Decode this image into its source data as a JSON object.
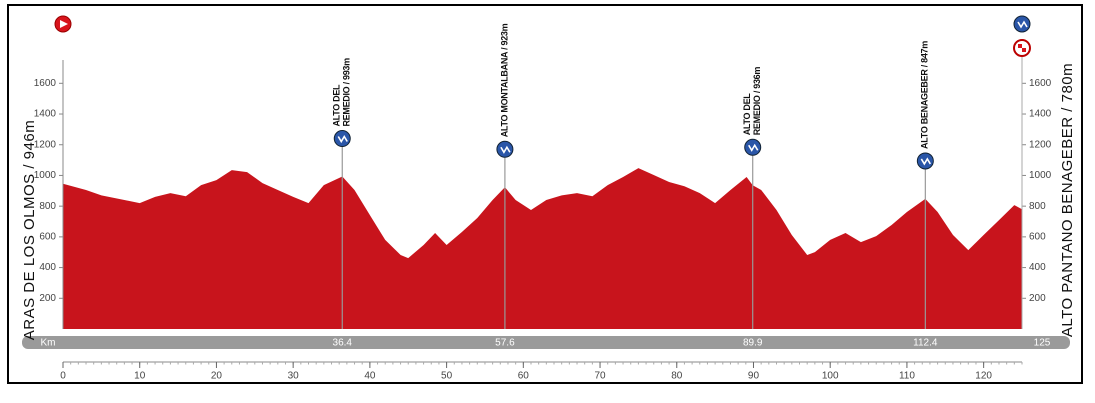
{
  "chart_data": {
    "type": "area",
    "color": "#c8141c",
    "start_label": "ARAS DE LOS OLMOS / 946m",
    "finish_label": "ALTO PANTANO BENAGEBER / 780m",
    "km_label": "Km",
    "x": [
      0,
      3,
      5,
      8,
      10,
      12,
      14,
      16,
      18,
      20,
      22,
      24,
      26,
      28,
      30,
      32,
      34,
      36.4,
      38,
      40,
      42,
      44,
      45,
      47,
      48.5,
      50,
      52,
      54,
      56,
      57.6,
      59,
      61,
      63,
      65,
      67,
      69,
      71,
      73,
      75,
      77,
      79,
      81,
      83,
      85,
      87,
      89.1,
      89.9,
      91,
      93,
      95,
      97,
      98,
      100,
      102,
      104,
      106,
      108,
      110,
      112.4,
      114,
      116,
      118,
      120,
      122,
      124,
      125
    ],
    "values": [
      946,
      905,
      870,
      840,
      820,
      860,
      885,
      865,
      937,
      970,
      1035,
      1022,
      950,
      905,
      860,
      820,
      937,
      993,
      905,
      742,
      580,
      482,
      462,
      547,
      625,
      547,
      632,
      723,
      840,
      923,
      840,
      775,
      840,
      870,
      885,
      865,
      937,
      990,
      1048,
      1003,
      957,
      930,
      885,
      820,
      905,
      990,
      936,
      905,
      775,
      612,
      482,
      501,
      580,
      625,
      566,
      605,
      677,
      762,
      847,
      762,
      612,
      514,
      612,
      709,
      807,
      780
    ],
    "xlim": [
      0,
      125
    ],
    "xticks": [
      0,
      10,
      20,
      30,
      40,
      50,
      60,
      70,
      80,
      90,
      100,
      110,
      120
    ],
    "ylim": [
      0,
      1800
    ],
    "yticks": [
      200,
      400,
      600,
      800,
      1000,
      1200,
      1400,
      1600
    ],
    "climbs": [
      {
        "km": 36.4,
        "elevation": 993,
        "name": [
          "ALTO DEL",
          "REMEDIO / 993m"
        ]
      },
      {
        "km": 57.6,
        "elevation": 923,
        "name": [
          "ALTO MONTALBANA / 923m"
        ]
      },
      {
        "km": 89.9,
        "elevation": 936,
        "name": [
          "ALTO DEL",
          "REMEDIO / 936m"
        ]
      },
      {
        "km": 112.4,
        "elevation": 847,
        "name": [
          "ALTO BENAGEBER / 847m"
        ]
      }
    ]
  }
}
